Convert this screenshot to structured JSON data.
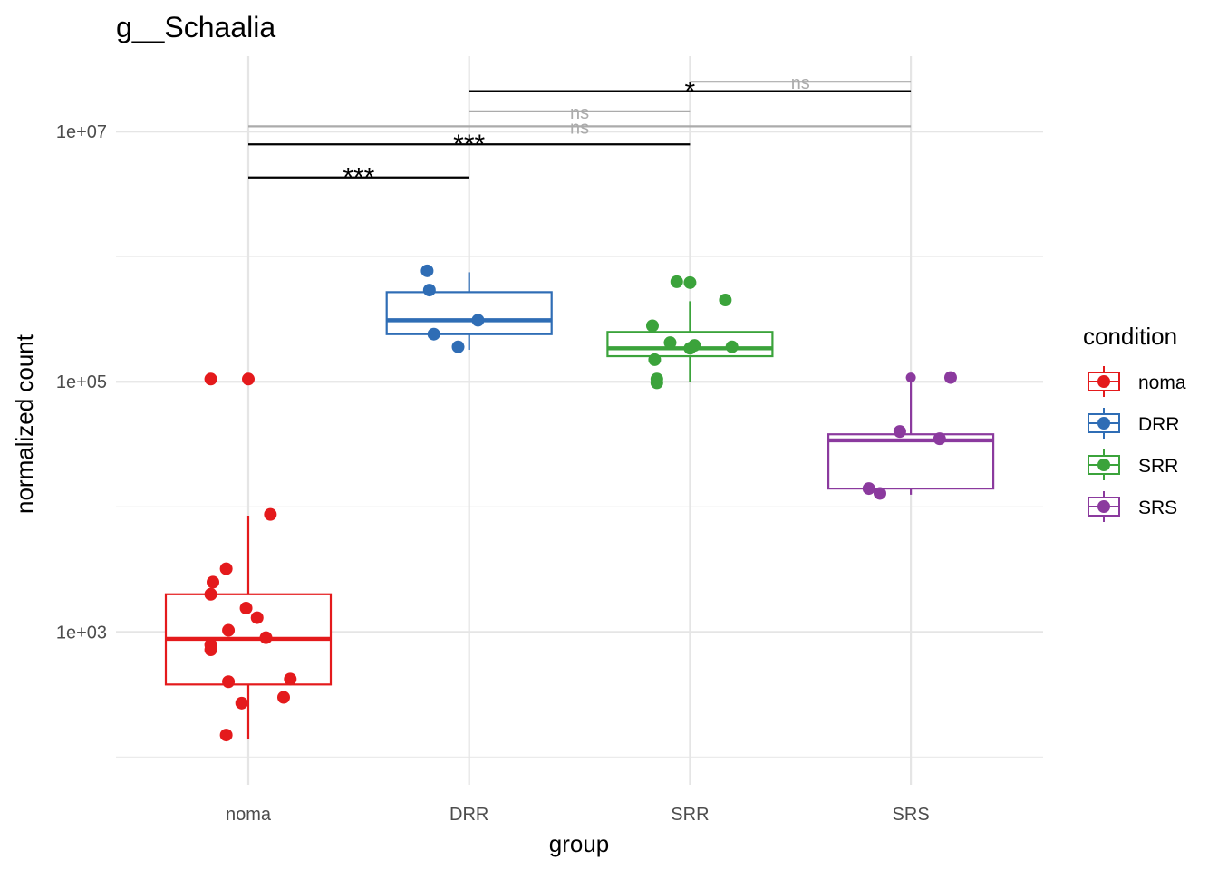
{
  "chart_data": {
    "type": "box",
    "title": "g__Schaalia",
    "xlabel": "group",
    "ylabel": "normalized count",
    "y_scale": "log10",
    "ylim": [
      60,
      40000000
    ],
    "y_ticks": [
      1000,
      100000,
      10000000
    ],
    "y_tick_labels": [
      "1e+03",
      "1e+05",
      "1e+07"
    ],
    "grid": true,
    "legend_position": "right",
    "legend_title": "condition",
    "categories": [
      "noma",
      "DRR",
      "SRR",
      "SRS"
    ],
    "series": [
      {
        "name": "noma",
        "color": "#E41A1C",
        "box": {
          "whisker_low": 140,
          "q1": 380,
          "median": 880,
          "q3": 2000,
          "whisker_high": 8500
        },
        "outliers": [
          {
            "x": 0.0,
            "y": 105000
          }
        ],
        "points": [
          {
            "x": -0.17,
            "y": 105000
          },
          {
            "x": 0.0,
            "y": 105000
          },
          {
            "x": 0.1,
            "y": 8700
          },
          {
            "x": -0.1,
            "y": 3200
          },
          {
            "x": -0.16,
            "y": 2500
          },
          {
            "x": -0.17,
            "y": 2000
          },
          {
            "x": -0.01,
            "y": 1550
          },
          {
            "x": 0.04,
            "y": 1300
          },
          {
            "x": -0.09,
            "y": 1030
          },
          {
            "x": 0.08,
            "y": 900
          },
          {
            "x": -0.17,
            "y": 790
          },
          {
            "x": -0.17,
            "y": 720
          },
          {
            "x": 0.19,
            "y": 420
          },
          {
            "x": -0.09,
            "y": 400
          },
          {
            "x": 0.16,
            "y": 300
          },
          {
            "x": -0.03,
            "y": 270
          },
          {
            "x": -0.1,
            "y": 150
          }
        ]
      },
      {
        "name": "DRR",
        "color": "#2F6DB5",
        "box": {
          "whisker_low": 180000,
          "q1": 240000,
          "median": 310000,
          "q3": 520000,
          "whisker_high": 750000
        },
        "outliers": [],
        "points": [
          {
            "x": -0.19,
            "y": 770000
          },
          {
            "x": -0.18,
            "y": 540000
          },
          {
            "x": 0.04,
            "y": 310000
          },
          {
            "x": -0.16,
            "y": 240000
          },
          {
            "x": -0.05,
            "y": 190000
          }
        ]
      },
      {
        "name": "SRR",
        "color": "#3BA33B",
        "box": {
          "whisker_low": 100000,
          "q1": 160000,
          "median": 185000,
          "q3": 250000,
          "whisker_high": 440000
        },
        "outliers": [
          {
            "x": 0.0,
            "y": 620000
          }
        ],
        "points": [
          {
            "x": -0.06,
            "y": 630000
          },
          {
            "x": 0.0,
            "y": 620000
          },
          {
            "x": 0.16,
            "y": 450000
          },
          {
            "x": -0.17,
            "y": 280000
          },
          {
            "x": -0.09,
            "y": 205000
          },
          {
            "x": 0.02,
            "y": 195000
          },
          {
            "x": 0.19,
            "y": 190000
          },
          {
            "x": -0.0,
            "y": 185000
          },
          {
            "x": -0.16,
            "y": 150000
          },
          {
            "x": -0.15,
            "y": 105000
          },
          {
            "x": -0.15,
            "y": 98000
          }
        ]
      },
      {
        "name": "SRS",
        "color": "#8B3A9E",
        "box": {
          "whisker_low": 12500,
          "q1": 14000,
          "median": 34000,
          "q3": 38000,
          "whisker_high": 106000
        },
        "outliers": [
          {
            "x": 0.0,
            "y": 108000
          }
        ],
        "points": [
          {
            "x": 0.18,
            "y": 108000
          },
          {
            "x": -0.05,
            "y": 40000
          },
          {
            "x": 0.13,
            "y": 35000
          },
          {
            "x": -0.19,
            "y": 14000
          },
          {
            "x": -0.14,
            "y": 12800
          }
        ]
      }
    ],
    "comparisons": [
      {
        "from": "noma",
        "to": "DRR",
        "label": "***",
        "y": 4300000,
        "significant": true
      },
      {
        "from": "noma",
        "to": "SRR",
        "label": "***",
        "y": 7900000,
        "significant": true
      },
      {
        "from": "noma",
        "to": "SRS",
        "label": "ns",
        "y": 11000000,
        "significant": false
      },
      {
        "from": "DRR",
        "to": "SRR",
        "label": "ns",
        "y": 14500000,
        "significant": false
      },
      {
        "from": "DRR",
        "to": "SRS",
        "label": "*",
        "y": 21000000,
        "significant": true
      },
      {
        "from": "SRR",
        "to": "SRS",
        "label": "ns",
        "y": 25000000,
        "significant": false
      }
    ]
  }
}
